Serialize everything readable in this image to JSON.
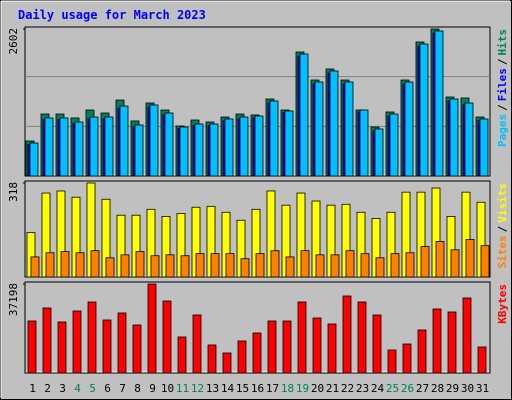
{
  "title": "Daily usage for March 2023",
  "legend_separator": "/",
  "chart_data": [
    {
      "type": "bar",
      "ylim": [
        0,
        2602
      ],
      "yticks": [
        2602
      ],
      "series": [
        {
          "name": "Hits",
          "color": "#00805c",
          "values": [
            620,
            1097,
            1097,
            1027,
            1168,
            1115,
            1345,
            974,
            1292,
            1168,
            885,
            991,
            956,
            1044,
            1097,
            1080,
            1363,
            1168,
            2195,
            1699,
            1894,
            1699,
            1168,
            867,
            1133,
            1699,
            2372,
            2602,
            1398,
            1381,
            1044
          ]
        },
        {
          "name": "Files",
          "color": "#0000ff",
          "values": [
            560,
            1000,
            1000,
            930,
            1010,
            1010,
            1200,
            870,
            1220,
            1080,
            840,
            890,
            890,
            980,
            1010,
            1030,
            1290,
            1120,
            2120,
            1630,
            1820,
            1630,
            1130,
            800,
            1060,
            1630,
            2300,
            2530,
            1330,
            1260,
            980
          ]
        },
        {
          "name": "Pages",
          "color": "#00c0ff",
          "values": [
            584,
            1027,
            1027,
            956,
            1044,
            1044,
            1239,
            903,
            1257,
            1115,
            867,
            920,
            920,
            1009,
            1044,
            1062,
            1328,
            1151,
            2159,
            1664,
            1859,
            1664,
            1168,
            832,
            1097,
            1664,
            2336,
            2567,
            1363,
            1292,
            1009
          ]
        }
      ]
    },
    {
      "type": "bar",
      "ylim": [
        0,
        318
      ],
      "yticks": [
        318
      ],
      "series": [
        {
          "name": "Visits",
          "color": "#ffff00",
          "values": [
            150,
            284,
            291,
            270,
            318,
            263,
            209,
            209,
            229,
            205,
            215,
            236,
            239,
            219,
            192,
            229,
            291,
            243,
            284,
            257,
            243,
            246,
            219,
            198,
            219,
            287,
            287,
            301,
            205,
            287,
            253
          ]
        },
        {
          "name": "Sites",
          "color": "#ff8000",
          "values": [
            68,
            82,
            86,
            82,
            89,
            65,
            75,
            86,
            72,
            75,
            72,
            79,
            79,
            79,
            62,
            79,
            89,
            68,
            89,
            75,
            75,
            89,
            79,
            65,
            79,
            82,
            103,
            120,
            92,
            127,
            106
          ]
        }
      ]
    },
    {
      "type": "bar",
      "ylim": [
        0,
        37198
      ],
      "yticks": [
        37198
      ],
      "categories": [
        "1",
        "2",
        "3",
        "4",
        "5",
        "6",
        "7",
        "8",
        "9",
        "10",
        "11",
        "12",
        "13",
        "14",
        "15",
        "16",
        "17",
        "18",
        "19",
        "20",
        "21",
        "22",
        "23",
        "24",
        "25",
        "26",
        "27",
        "28",
        "29",
        "30",
        "31"
      ],
      "category_colors": [
        "#000000",
        "#000000",
        "#000000",
        "#00805c",
        "#00805c",
        "#000000",
        "#000000",
        "#000000",
        "#000000",
        "#000000",
        "#00805c",
        "#00805c",
        "#000000",
        "#000000",
        "#000000",
        "#000000",
        "#000000",
        "#00805c",
        "#00805c",
        "#000000",
        "#000000",
        "#000000",
        "#000000",
        "#000000",
        "#00805c",
        "#00805c",
        "#000000",
        "#000000",
        "#000000",
        "#000000",
        "#000000"
      ],
      "series": [
        {
          "name": "KBytes",
          "color": "#ff0000",
          "values": [
            21736,
            27170,
            21318,
            25916,
            29678,
            22154,
            25080,
            20064,
            37198,
            30096,
            15048,
            24244,
            11704,
            8360,
            13376,
            16720,
            21736,
            21736,
            29678,
            22990,
            20482,
            32186,
            29678,
            24244,
            9614,
            12122,
            17974,
            26752,
            25498,
            31350,
            10868
          ]
        }
      ]
    }
  ]
}
